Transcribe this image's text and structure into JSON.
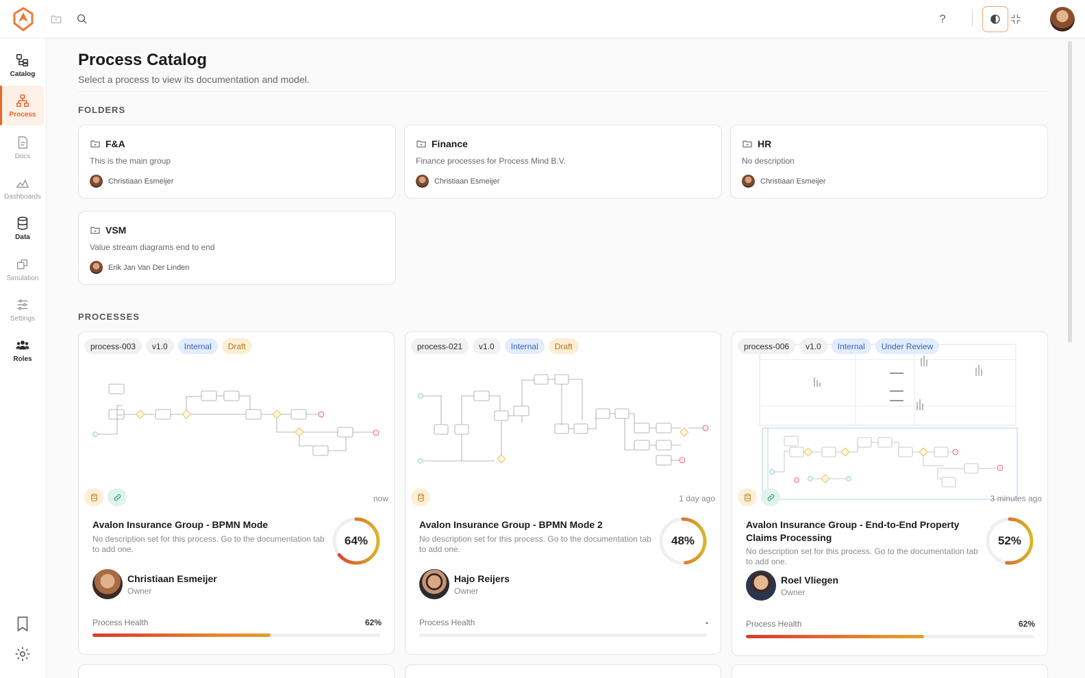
{
  "topbar": {
    "icons": [
      "folder-icon",
      "search-icon",
      "help-icon",
      "theme-toggle-icon",
      "collapse-icon"
    ],
    "help_label": "?"
  },
  "sidebar": {
    "items": [
      {
        "label": "Catalog",
        "icon": "catalog-icon"
      },
      {
        "label": "Process",
        "icon": "process-icon"
      },
      {
        "label": "Docs",
        "icon": "docs-icon"
      },
      {
        "label": "Dashboards",
        "icon": "dashboards-icon"
      },
      {
        "label": "Data",
        "icon": "data-icon"
      },
      {
        "label": "Simulation",
        "icon": "simulation-icon"
      },
      {
        "label": "Settings",
        "icon": "settings-sliders-icon"
      },
      {
        "label": "Roles",
        "icon": "roles-icon"
      }
    ],
    "bottom_icons": [
      "bookmark-icon",
      "gear-icon"
    ]
  },
  "page": {
    "title": "Process Catalog",
    "subtitle": "Select a process to view its documentation and model.",
    "folders_heading": "FOLDERS",
    "processes_heading": "PROCESSES"
  },
  "folders": [
    {
      "name": "F&A",
      "description": "This is the main group",
      "owner": "Christiaan Esmeijer"
    },
    {
      "name": "Finance",
      "description": "Finance processes for Process Mind B.V.",
      "owner": "Christiaan Esmeijer"
    },
    {
      "name": "HR",
      "description": "No description",
      "owner": "Christiaan Esmeijer"
    },
    {
      "name": "VSM",
      "description": "Value stream diagrams end to end",
      "owner": "Erik Jan Van Der Linden"
    }
  ],
  "processes": [
    {
      "id": "process-003",
      "version": "v1.0",
      "visibility": "Internal",
      "status": "Draft",
      "updated": "now",
      "name": "Avalon Insurance Group - BPMN Mode",
      "description": "No description set for this process. Go to the documentation tab to add one.",
      "completion": 64,
      "completion_label": "64%",
      "owner": "Christiaan Esmeijer",
      "owner_role": "Owner",
      "health_label": "Process Health",
      "health_value": "62%",
      "health_fraction": 0.62
    },
    {
      "id": "process-021",
      "version": "v1.0",
      "visibility": "Internal",
      "status": "Draft",
      "updated": "1 day ago",
      "name": "Avalon Insurance Group - BPMN Mode 2",
      "description": "No description set for this process. Go to the documentation tab to add one.",
      "completion": 48,
      "completion_label": "48%",
      "owner": "Hajo Reijers",
      "owner_role": "Owner",
      "health_label": "Process Health",
      "health_value": "-",
      "health_fraction": 0
    },
    {
      "id": "process-006",
      "version": "v1.0",
      "visibility": "Internal",
      "status": "Under Review",
      "updated": "3 minutes ago",
      "name": "Avalon Insurance Group - End-to-End Property Claims Processing",
      "description": "No description set for this process. Go to the documentation tab to add one.",
      "completion": 52,
      "completion_label": "52%",
      "owner": "Roel Vliegen",
      "owner_role": "Owner",
      "health_label": "Process Health",
      "health_value": "62%",
      "health_fraction": 0.62
    }
  ],
  "colors": {
    "accent": "#e8662c",
    "tag_blue": "#3363b8",
    "tag_amber": "#b27218",
    "ring_start": "#d83a2e",
    "ring_end": "#d9b62b"
  }
}
